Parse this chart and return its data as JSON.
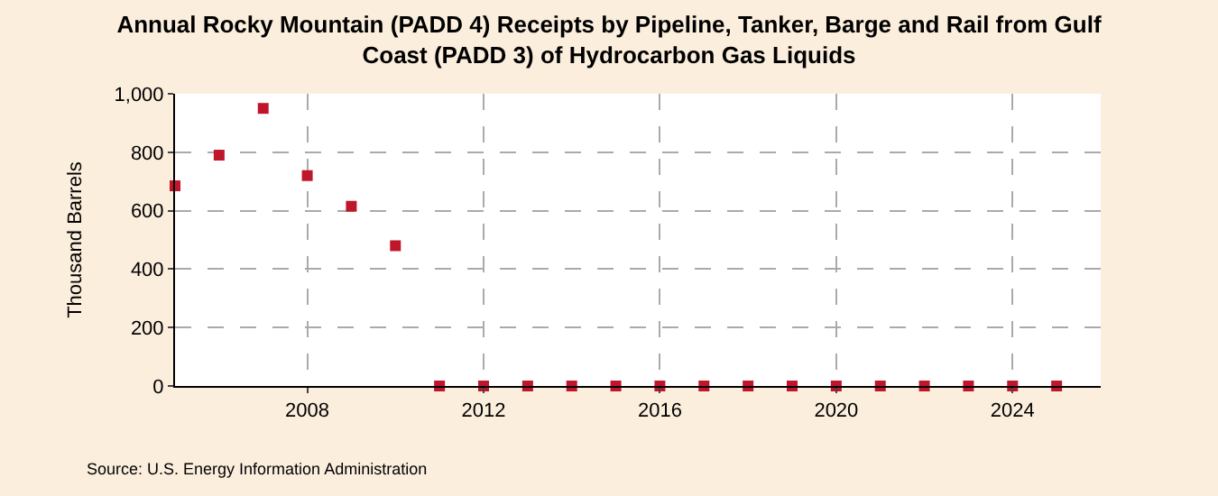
{
  "chart_data": {
    "type": "scatter",
    "title": "Annual Rocky Mountain (PADD 4) Receipts by Pipeline, Tanker, Barge and Rail from Gulf Coast (PADD 3) of Hydrocarbon Gas Liquids",
    "ylabel": "Thousand Barrels",
    "x": [
      2005,
      2006,
      2007,
      2008,
      2009,
      2010,
      2011,
      2012,
      2013,
      2014,
      2015,
      2016,
      2017,
      2018,
      2019,
      2020,
      2021,
      2022,
      2023,
      2024,
      2025
    ],
    "series": [
      {
        "color": "#c0162c",
        "values": [
          685,
          790,
          950,
          720,
          615,
          480,
          0,
          0,
          0,
          0,
          0,
          0,
          0,
          0,
          0,
          0,
          0,
          0,
          0,
          0,
          0
        ]
      }
    ],
    "xlim": [
      2005,
      2026
    ],
    "xticks": [
      2008,
      2012,
      2016,
      2020,
      2024
    ],
    "ylim": [
      0,
      1000
    ],
    "yticks": [
      0,
      200,
      400,
      600,
      800,
      {
        "value": 1000,
        "label": "1,000"
      }
    ],
    "grid": true,
    "marker": "square",
    "annotations": [
      "Source: U.S. Energy Information Administration"
    ]
  }
}
